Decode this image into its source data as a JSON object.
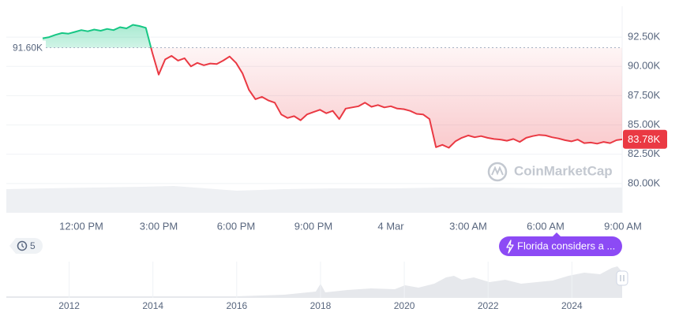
{
  "chart_data": {
    "type": "line",
    "categories": [
      null,
      null,
      null,
      null,
      null,
      null,
      "12:00 PM",
      null,
      null,
      null,
      null,
      null,
      null,
      null,
      null,
      null,
      null,
      null,
      "3:00 PM",
      null,
      null,
      null,
      null,
      null,
      null,
      null,
      null,
      null,
      null,
      null,
      "6:00 PM",
      null,
      null,
      null,
      null,
      null,
      null,
      null,
      null,
      null,
      null,
      null,
      "9:00 PM",
      null,
      null,
      null,
      null,
      null,
      null,
      null,
      null,
      null,
      null,
      null,
      "4 Mar",
      null,
      null,
      null,
      null,
      null,
      null,
      null,
      null,
      null,
      null,
      null,
      "3:00 AM",
      null,
      null,
      null,
      null,
      null,
      null,
      null,
      null,
      null,
      null,
      null,
      "6:00 AM",
      null,
      null,
      null,
      null,
      null,
      null,
      null,
      null,
      null,
      null,
      null,
      "9:00 AM"
    ],
    "values": [
      92400,
      92500,
      92700,
      92850,
      92800,
      92950,
      93100,
      93000,
      93150,
      93050,
      93200,
      93100,
      93350,
      93250,
      93550,
      93450,
      93300,
      91200,
      89300,
      90600,
      90900,
      90500,
      90700,
      90000,
      90300,
      90100,
      90250,
      90200,
      90500,
      90850,
      90300,
      89400,
      88000,
      87200,
      87400,
      87100,
      86900,
      85900,
      85600,
      85750,
      85400,
      85900,
      86100,
      86300,
      86000,
      86200,
      85500,
      86400,
      86500,
      86600,
      86900,
      86550,
      86700,
      86500,
      86600,
      86400,
      86350,
      86200,
      85950,
      85900,
      85500,
      83100,
      83300,
      83050,
      83600,
      83900,
      84100,
      83950,
      84050,
      83900,
      83800,
      83750,
      83650,
      83800,
      83550,
      83900,
      84050,
      84150,
      84100,
      83950,
      83850,
      83700,
      83600,
      83750,
      83450,
      83500,
      83400,
      83550,
      83450,
      83700,
      83780
    ],
    "up_color": "#16c784",
    "down_color": "#ea3943",
    "ylim": [
      77500,
      95000
    ],
    "yticks": [
      {
        "value": 80000,
        "label": "80.00K"
      },
      {
        "value": 82500,
        "label": "82.50K"
      },
      {
        "value": 85000,
        "label": "85.00K"
      },
      {
        "value": 87500,
        "label": "87.50K"
      },
      {
        "value": 90000,
        "label": "90.00K"
      },
      {
        "value": 92500,
        "label": "92.50K"
      }
    ],
    "grid": true,
    "baseline": {
      "value": 91600,
      "label": "91.60K"
    },
    "last_price": {
      "value": 83780,
      "label": "83.78K"
    },
    "watermark": "CoinMarketCap"
  },
  "history_badge": 5,
  "event_tag": "Florida considers a ...",
  "navigator": {
    "xlim": [
      2010.5,
      2025.2
    ],
    "xticks": [
      2012,
      2014,
      2016,
      2018,
      2020,
      2022,
      2024
    ]
  }
}
